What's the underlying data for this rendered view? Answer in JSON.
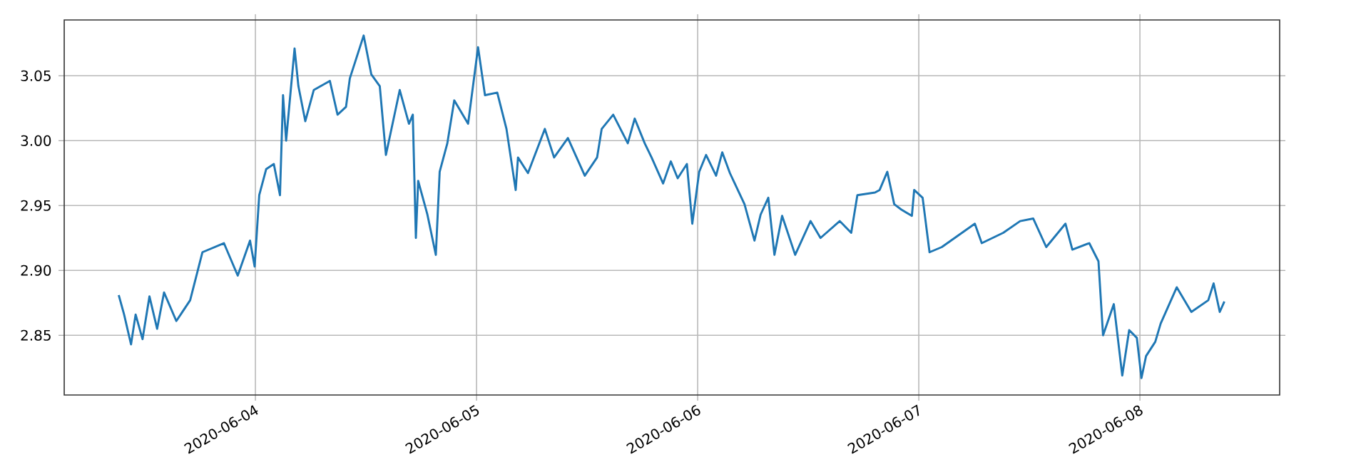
{
  "chart_data": {
    "type": "line",
    "color": "#1f77b4",
    "grid": true,
    "marker": "none",
    "line_style": "solid",
    "xlim": [
      "2020-06-03T03:15",
      "2020-06-08T15:10"
    ],
    "ylim": [
      2.804,
      3.093
    ],
    "xticks": [
      "2020-06-04",
      "2020-06-05",
      "2020-06-06",
      "2020-06-07",
      "2020-06-08"
    ],
    "yticks": [
      {
        "value": 2.85,
        "label": "2.85"
      },
      {
        "value": 2.9,
        "label": "2.90"
      },
      {
        "value": 2.95,
        "label": "2.95"
      },
      {
        "value": 3.0,
        "label": "3.00"
      },
      {
        "value": 3.05,
        "label": "3.05"
      }
    ],
    "x": [
      "2020-06-03T09:10",
      "2020-06-03T09:45",
      "2020-06-03T10:30",
      "2020-06-03T11:00",
      "2020-06-03T11:45",
      "2020-06-03T12:30",
      "2020-06-03T13:20",
      "2020-06-03T14:05",
      "2020-06-03T15:25",
      "2020-06-03T16:55",
      "2020-06-03T18:15",
      "2020-06-03T20:35",
      "2020-06-03T22:05",
      "2020-06-03T23:25",
      "2020-06-03T23:55",
      "2020-06-04T00:25",
      "2020-06-04T01:10",
      "2020-06-04T02:00",
      "2020-06-04T02:40",
      "2020-06-04T03:00",
      "2020-06-04T03:20",
      "2020-06-04T04:15",
      "2020-06-04T04:40",
      "2020-06-04T05:25",
      "2020-06-04T06:20",
      "2020-06-04T08:05",
      "2020-06-04T08:55",
      "2020-06-04T09:50",
      "2020-06-04T10:15",
      "2020-06-04T11:45",
      "2020-06-04T12:35",
      "2020-06-04T13:30",
      "2020-06-04T14:10",
      "2020-06-04T15:40",
      "2020-06-04T16:40",
      "2020-06-04T17:05",
      "2020-06-04T17:25",
      "2020-06-04T17:40",
      "2020-06-04T18:40",
      "2020-06-04T19:35",
      "2020-06-04T20:00",
      "2020-06-04T20:50",
      "2020-06-04T21:35",
      "2020-06-04T23:05",
      "2020-06-05T00:10",
      "2020-06-05T00:55",
      "2020-06-05T02:15",
      "2020-06-05T03:15",
      "2020-06-05T04:15",
      "2020-06-05T04:30",
      "2020-06-05T05:35",
      "2020-06-05T07:25",
      "2020-06-05T08:25",
      "2020-06-05T09:55",
      "2020-06-05T11:45",
      "2020-06-05T13:05",
      "2020-06-05T13:35",
      "2020-06-05T14:50",
      "2020-06-05T16:25",
      "2020-06-05T17:10",
      "2020-06-05T18:15",
      "2020-06-05T19:00",
      "2020-06-05T20:15",
      "2020-06-05T21:05",
      "2020-06-05T21:50",
      "2020-06-05T22:50",
      "2020-06-05T23:25",
      "2020-06-06T00:10",
      "2020-06-06T00:55",
      "2020-06-06T02:00",
      "2020-06-06T02:40",
      "2020-06-06T03:30",
      "2020-06-06T05:05",
      "2020-06-06T06:10",
      "2020-06-06T06:50",
      "2020-06-06T07:40",
      "2020-06-06T08:20",
      "2020-06-06T09:10",
      "2020-06-06T10:35",
      "2020-06-06T12:15",
      "2020-06-06T13:20",
      "2020-06-06T15:25",
      "2020-06-06T16:40",
      "2020-06-06T17:20",
      "2020-06-06T19:15",
      "2020-06-06T19:45",
      "2020-06-06T20:35",
      "2020-06-06T21:20",
      "2020-06-06T22:05",
      "2020-06-06T23:15",
      "2020-06-06T23:30",
      "2020-06-07T00:25",
      "2020-06-07T01:10",
      "2020-06-07T02:30",
      "2020-06-07T06:05",
      "2020-06-07T06:50",
      "2020-06-07T09:10",
      "2020-06-07T11:00",
      "2020-06-07T12:25",
      "2020-06-07T13:50",
      "2020-06-07T15:55",
      "2020-06-07T16:40",
      "2020-06-07T18:30",
      "2020-06-07T19:30",
      "2020-06-07T20:00",
      "2020-06-07T21:10",
      "2020-06-07T22:05",
      "2020-06-07T22:50",
      "2020-06-07T23:40",
      "2020-06-08T00:10",
      "2020-06-08T00:40",
      "2020-06-08T01:40",
      "2020-06-08T02:15",
      "2020-06-08T04:00",
      "2020-06-08T05:35",
      "2020-06-08T07:25",
      "2020-06-08T08:00",
      "2020-06-08T08:40",
      "2020-06-08T09:10"
    ],
    "values": [
      2.881,
      2.866,
      2.843,
      2.866,
      2.847,
      2.88,
      2.855,
      2.883,
      2.861,
      2.877,
      2.914,
      2.921,
      2.896,
      2.923,
      2.903,
      2.958,
      2.978,
      2.982,
      2.958,
      3.035,
      3.0,
      3.071,
      3.042,
      3.015,
      3.039,
      3.046,
      3.02,
      3.026,
      3.048,
      3.081,
      3.051,
      3.042,
      2.989,
      3.039,
      3.013,
      3.02,
      2.925,
      2.969,
      2.943,
      2.912,
      2.976,
      2.998,
      3.031,
      3.013,
      3.072,
      3.035,
      3.037,
      3.009,
      2.962,
      2.987,
      2.975,
      3.009,
      2.987,
      3.002,
      2.973,
      2.987,
      3.009,
      3.02,
      2.998,
      3.017,
      2.998,
      2.987,
      2.967,
      2.984,
      2.971,
      2.982,
      2.936,
      2.976,
      2.989,
      2.973,
      2.991,
      2.975,
      2.951,
      2.923,
      2.943,
      2.956,
      2.912,
      2.942,
      2.912,
      2.938,
      2.925,
      2.938,
      2.929,
      2.958,
      2.96,
      2.962,
      2.976,
      2.951,
      2.947,
      2.942,
      2.962,
      2.956,
      2.914,
      2.918,
      2.936,
      2.921,
      2.929,
      2.938,
      2.94,
      2.918,
      2.936,
      2.916,
      2.921,
      2.907,
      2.85,
      2.874,
      2.819,
      2.854,
      2.848,
      2.817,
      2.834,
      2.845,
      2.859,
      2.887,
      2.868,
      2.877,
      2.89,
      2.868,
      2.876
    ]
  }
}
